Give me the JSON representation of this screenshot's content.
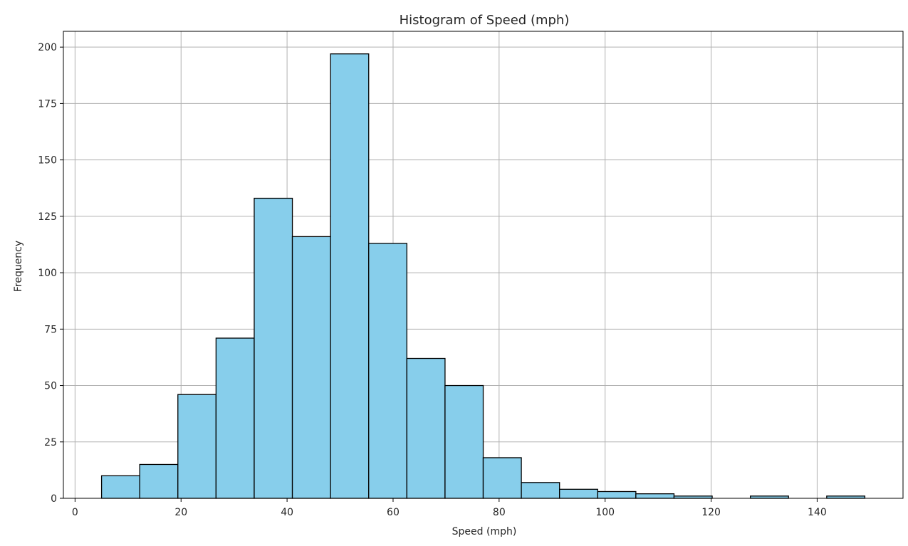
{
  "chart_data": {
    "type": "bar",
    "title": "Histogram of Speed (mph)",
    "xlabel": "Speed (mph)",
    "ylabel": "Frequency",
    "xlim": [
      -2.2,
      156.2
    ],
    "ylim": [
      0,
      207
    ],
    "xticks": [
      0,
      20,
      40,
      60,
      80,
      100,
      120,
      140
    ],
    "yticks": [
      0,
      25,
      50,
      75,
      100,
      125,
      150,
      175,
      200
    ],
    "grid": true,
    "bar_color": "#87ceeb",
    "edge_color": "#000000",
    "bins": [
      {
        "start": 5.0,
        "end": 12.2,
        "count": 10
      },
      {
        "start": 12.2,
        "end": 19.4,
        "count": 15
      },
      {
        "start": 19.4,
        "end": 26.6,
        "count": 46
      },
      {
        "start": 26.6,
        "end": 33.8,
        "count": 71
      },
      {
        "start": 33.8,
        "end": 41.0,
        "count": 133
      },
      {
        "start": 41.0,
        "end": 48.2,
        "count": 116
      },
      {
        "start": 48.2,
        "end": 55.4,
        "count": 197
      },
      {
        "start": 55.4,
        "end": 62.6,
        "count": 113
      },
      {
        "start": 62.6,
        "end": 69.8,
        "count": 62
      },
      {
        "start": 69.8,
        "end": 77.0,
        "count": 50
      },
      {
        "start": 77.0,
        "end": 84.2,
        "count": 18
      },
      {
        "start": 84.2,
        "end": 91.4,
        "count": 7
      },
      {
        "start": 91.4,
        "end": 98.6,
        "count": 4
      },
      {
        "start": 98.6,
        "end": 105.8,
        "count": 3
      },
      {
        "start": 105.8,
        "end": 113.0,
        "count": 2
      },
      {
        "start": 113.0,
        "end": 120.2,
        "count": 1
      },
      {
        "start": 120.2,
        "end": 127.4,
        "count": 0
      },
      {
        "start": 127.4,
        "end": 134.6,
        "count": 1
      },
      {
        "start": 134.6,
        "end": 141.8,
        "count": 0
      },
      {
        "start": 141.8,
        "end": 149.0,
        "count": 1
      }
    ]
  }
}
